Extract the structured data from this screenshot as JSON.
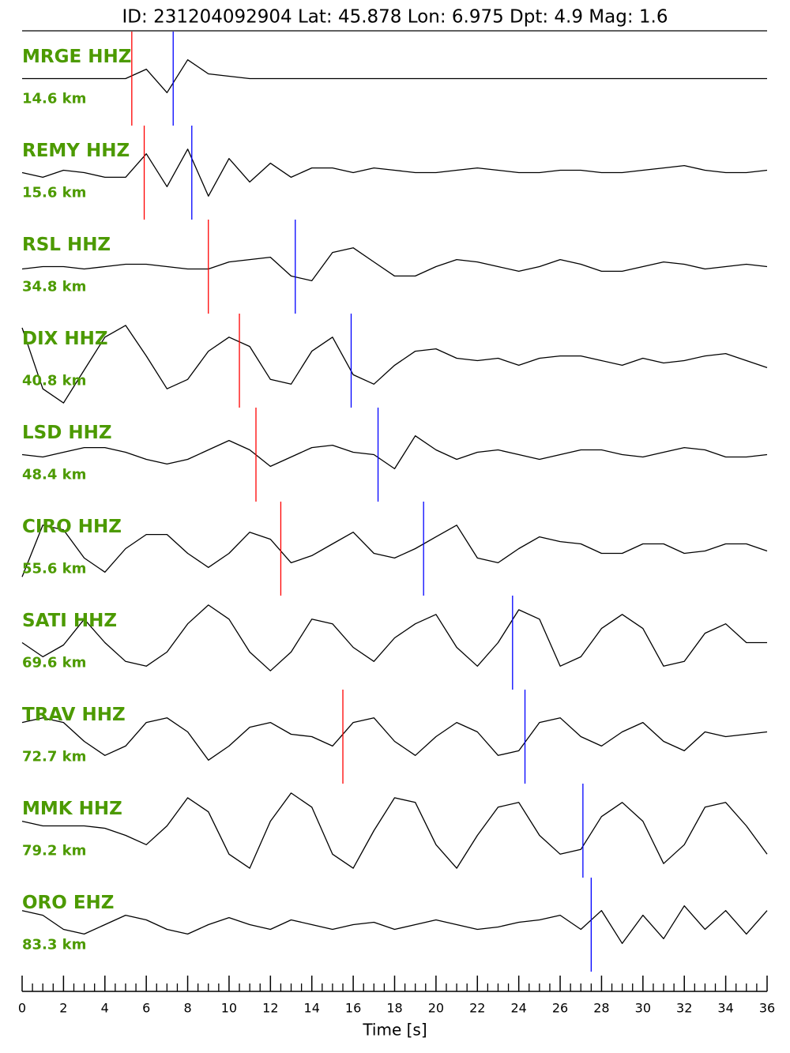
{
  "chart_data": {
    "type": "seismogram",
    "title": "ID: 231204092904 Lat:  45.878 Lon:   6.975 Dpt:     4.9 Mag:   1.6",
    "xlabel": "Time [s]",
    "xlim": [
      0,
      36
    ],
    "xticks": [
      0,
      2,
      4,
      6,
      8,
      10,
      12,
      14,
      16,
      18,
      20,
      22,
      24,
      26,
      28,
      30,
      32,
      34,
      36
    ],
    "xminorticks": [
      0.5,
      1,
      1.5,
      2.5,
      3,
      3.5,
      4.5,
      5,
      5.5,
      6.5,
      7,
      7.5,
      8.5,
      9,
      9.5,
      10.5,
      11,
      11.5,
      12.5,
      13,
      13.5,
      14.5,
      15,
      15.5,
      16.5,
      17,
      17.5,
      18.5,
      19,
      19.5,
      20.5,
      21,
      21.5,
      22.5,
      23,
      23.5,
      24.5,
      25,
      25.5,
      26.5,
      27,
      27.5,
      28.5,
      29,
      29.5,
      30.5,
      31,
      31.5,
      32.5,
      33,
      33.5,
      34.5,
      35,
      35.5
    ],
    "ylim": [
      -1,
      1
    ],
    "label_color": "#4c9a00",
    "p_color": "#ff0000",
    "s_color": "#0000ff",
    "x": [
      0,
      1,
      2,
      3,
      4,
      5,
      6,
      7,
      8,
      9,
      10,
      11,
      12,
      13,
      14,
      15,
      16,
      17,
      18,
      19,
      20,
      21,
      22,
      23,
      24,
      25,
      26,
      27,
      28,
      29,
      30,
      31,
      32,
      33,
      34,
      35,
      36
    ],
    "series": [
      {
        "name": "MRGE HHZ",
        "distance": "14.6 km",
        "color": "#000000",
        "p_pick": 5.3,
        "s_pick": 7.3,
        "values": [
          0,
          0,
          0,
          0,
          0,
          0,
          0.2,
          -0.3,
          0.4,
          0.1,
          0.05,
          0,
          0,
          0,
          0,
          0,
          0,
          0,
          0,
          0,
          0,
          0,
          0,
          0,
          0,
          0,
          0,
          0,
          0,
          0,
          0,
          0,
          0,
          0,
          0,
          0,
          0
        ]
      },
      {
        "name": "REMY HHZ",
        "distance": "15.6 km",
        "color": "#000000",
        "p_pick": 5.9,
        "s_pick": 8.2,
        "values": [
          0,
          -0.1,
          0.05,
          0,
          -0.1,
          -0.1,
          0.4,
          -0.3,
          0.5,
          -0.5,
          0.3,
          -0.2,
          0.2,
          -0.1,
          0.1,
          0.1,
          0,
          0.1,
          0.05,
          0,
          0,
          0.05,
          0.1,
          0.05,
          0,
          0,
          0.05,
          0.05,
          0,
          0,
          0.05,
          0.1,
          0.15,
          0.05,
          0,
          0,
          0.05
        ]
      },
      {
        "name": "RSL HHZ",
        "distance": "34.8 km",
        "color": "#000000",
        "p_pick": 9.0,
        "s_pick": 13.2,
        "values": [
          -0.05,
          0,
          0,
          -0.05,
          0,
          0.05,
          0.05,
          0,
          -0.05,
          -0.05,
          0.1,
          0.15,
          0.2,
          -0.2,
          -0.3,
          0.3,
          0.4,
          0.1,
          -0.2,
          -0.2,
          0,
          0.15,
          0.1,
          0,
          -0.1,
          0,
          0.15,
          0.05,
          -0.1,
          -0.1,
          0,
          0.1,
          0.05,
          -0.05,
          0,
          0.05,
          0
        ]
      },
      {
        "name": "DIX HHZ",
        "distance": "40.8 km",
        "color": "#000000",
        "p_pick": 10.5,
        "s_pick": 15.9,
        "values": [
          0.7,
          -0.6,
          -0.9,
          -0.2,
          0.5,
          0.75,
          0.1,
          -0.6,
          -0.4,
          0.2,
          0.5,
          0.3,
          -0.4,
          -0.5,
          0.2,
          0.5,
          -0.3,
          -0.5,
          -0.1,
          0.2,
          0.25,
          0.05,
          0,
          0.05,
          -0.1,
          0.05,
          0.1,
          0.1,
          0,
          -0.1,
          0.05,
          -0.05,
          0,
          0.1,
          0.15,
          0,
          -0.15
        ]
      },
      {
        "name": "LSD HHZ",
        "distance": "48.4 km",
        "color": "#000000",
        "p_pick": 11.3,
        "s_pick": 17.2,
        "values": [
          0,
          -0.05,
          0.05,
          0.15,
          0.15,
          0.05,
          -0.1,
          -0.2,
          -0.1,
          0.1,
          0.3,
          0.1,
          -0.25,
          -0.05,
          0.15,
          0.2,
          0.05,
          0,
          -0.3,
          0.4,
          0.1,
          -0.1,
          0.05,
          0.1,
          0,
          -0.1,
          0,
          0.1,
          0.1,
          0,
          -0.05,
          0.05,
          0.15,
          0.1,
          -0.05,
          -0.05,
          0
        ]
      },
      {
        "name": "CIRO HHZ",
        "distance": "55.6 km",
        "color": "#000000",
        "p_pick": 12.5,
        "s_pick": 19.4,
        "values": [
          -0.6,
          0.5,
          0.4,
          -0.2,
          -0.5,
          0,
          0.3,
          0.3,
          -0.1,
          -0.4,
          -0.1,
          0.35,
          0.2,
          -0.3,
          -0.15,
          0.1,
          0.35,
          -0.1,
          -0.2,
          0,
          0.25,
          0.5,
          -0.2,
          -0.3,
          0,
          0.25,
          0.15,
          0.1,
          -0.1,
          -0.1,
          0.1,
          0.1,
          -0.1,
          -0.05,
          0.1,
          0.1,
          -0.05
        ]
      },
      {
        "name": "SATI HHZ",
        "distance": "69.6 km",
        "color": "#000000",
        "p_pick": null,
        "s_pick": 23.7,
        "values": [
          0,
          -0.3,
          -0.05,
          0.5,
          0,
          -0.4,
          -0.5,
          -0.2,
          0.4,
          0.8,
          0.5,
          -0.2,
          -0.6,
          -0.2,
          0.5,
          0.4,
          -0.1,
          -0.4,
          0.1,
          0.4,
          0.6,
          -0.1,
          -0.5,
          0,
          0.7,
          0.5,
          -0.5,
          -0.3,
          0.3,
          0.6,
          0.3,
          -0.5,
          -0.4,
          0.2,
          0.4,
          0,
          0
        ]
      },
      {
        "name": "TRAV HHZ",
        "distance": "72.7 km",
        "color": "#000000",
        "p_pick": 15.5,
        "s_pick": 24.3,
        "values": [
          0.3,
          0.4,
          0.3,
          -0.1,
          -0.4,
          -0.2,
          0.3,
          0.4,
          0.1,
          -0.5,
          -0.2,
          0.2,
          0.3,
          0.05,
          0,
          -0.2,
          0.3,
          0.4,
          -0.1,
          -0.4,
          0,
          0.3,
          0.1,
          -0.4,
          -0.3,
          0.3,
          0.4,
          0,
          -0.2,
          0.1,
          0.3,
          -0.1,
          -0.3,
          0.1,
          0,
          0.05,
          0.1
        ]
      },
      {
        "name": "MMK HHZ",
        "distance": "79.2 km",
        "color": "#000000",
        "p_pick": null,
        "s_pick": 27.1,
        "values": [
          0.2,
          0.1,
          0.1,
          0.1,
          0.05,
          -0.1,
          -0.3,
          0.1,
          0.7,
          0.4,
          -0.5,
          -0.8,
          0.2,
          0.8,
          0.5,
          -0.5,
          -0.8,
          0,
          0.7,
          0.6,
          -0.3,
          -0.8,
          -0.1,
          0.5,
          0.6,
          -0.1,
          -0.5,
          -0.4,
          0.3,
          0.6,
          0.2,
          -0.7,
          -0.3,
          0.5,
          0.6,
          0.1,
          -0.5
        ]
      },
      {
        "name": "ORO EHZ",
        "distance": "83.3 km",
        "color": "#000000",
        "p_pick": null,
        "s_pick": 27.5,
        "values": [
          0.3,
          0.2,
          -0.1,
          -0.2,
          0,
          0.2,
          0.1,
          -0.1,
          -0.2,
          0,
          0.15,
          0,
          -0.1,
          0.1,
          0,
          -0.1,
          0,
          0.05,
          -0.1,
          0,
          0.1,
          0,
          -0.1,
          -0.05,
          0.05,
          0.1,
          0.2,
          -0.1,
          0.3,
          -0.4,
          0.2,
          -0.3,
          0.4,
          -0.1,
          0.3,
          -0.2,
          0.3
        ]
      }
    ]
  }
}
